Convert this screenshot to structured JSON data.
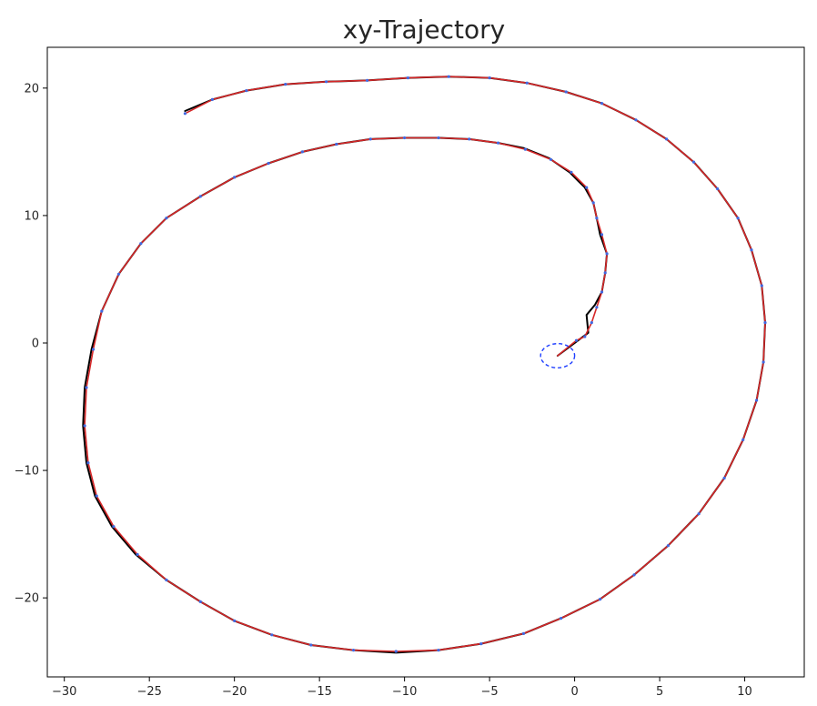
{
  "chart_data": {
    "type": "line",
    "title": "xy-Trajectory",
    "xlabel": "",
    "ylabel": "",
    "xlim": [
      -31,
      13.5
    ],
    "ylim": [
      -26.2,
      23.2
    ],
    "xticks": [
      -30,
      -25,
      -20,
      -15,
      -10,
      -5,
      0,
      5,
      10
    ],
    "yticks": [
      -20,
      -10,
      0,
      10,
      20
    ],
    "xtick_labels": [
      "−30",
      "−25",
      "−20",
      "−15",
      "−10",
      "−5",
      "0",
      "5",
      "10"
    ],
    "ytick_labels": [
      "−20",
      "−10",
      "0",
      "10",
      "20"
    ],
    "grid": false,
    "colors": {
      "ground_truth": "#000000",
      "estimate": "#d62728",
      "points": "#4169e1",
      "start_marker": "#1f3fff"
    },
    "start_marker": {
      "shape": "dashed-ellipse",
      "x": -1.0,
      "y": -1.0,
      "rx_data": 1.0,
      "ry_data": 0.95
    },
    "series": [
      {
        "style": "solid",
        "color": "#000000",
        "x": [
          -1.0,
          0.3,
          0.8,
          0.7,
          1.2,
          1.6,
          1.8,
          1.9,
          1.5,
          1.3,
          1.1,
          0.6,
          -0.3,
          -1.5,
          -3.0,
          -4.5,
          -6.2,
          -8.0,
          -10.0,
          -12.0,
          -14.0,
          -16.0,
          -18.0,
          -20.0,
          -22.0,
          -24.0,
          -25.5,
          -26.8,
          -27.8,
          -28.4,
          -28.8,
          -28.9,
          -28.7,
          -28.2,
          -27.2,
          -25.8,
          -24.0,
          -22.0,
          -20.0,
          -17.8,
          -15.5,
          -13.0,
          -10.5,
          -8.0,
          -5.5,
          -3.0,
          -0.8,
          1.5,
          3.5,
          5.5,
          7.3,
          8.8,
          9.9,
          10.7,
          11.1,
          11.2,
          11.0,
          10.4,
          9.6,
          8.4,
          7.0,
          5.4,
          3.6,
          1.6,
          -0.5,
          -2.8,
          -5.0,
          -7.4,
          -9.8,
          -12.2,
          -14.6,
          -17.0,
          -19.3,
          -21.3,
          -22.9
        ],
        "y": [
          -1.0,
          0.3,
          0.8,
          2.2,
          3.0,
          4.0,
          5.5,
          7.0,
          8.5,
          9.8,
          11.0,
          12.2,
          13.4,
          14.5,
          15.3,
          15.7,
          16.0,
          16.1,
          16.1,
          16.0,
          15.6,
          15.0,
          14.1,
          13.0,
          11.5,
          9.8,
          7.8,
          5.4,
          2.5,
          -0.5,
          -3.5,
          -6.5,
          -9.4,
          -12.0,
          -14.4,
          -16.6,
          -18.6,
          -20.3,
          -21.8,
          -22.9,
          -23.7,
          -24.1,
          -24.3,
          -24.1,
          -23.6,
          -22.8,
          -21.6,
          -20.1,
          -18.2,
          -15.9,
          -13.4,
          -10.6,
          -7.6,
          -4.5,
          -1.5,
          1.6,
          4.5,
          7.3,
          9.8,
          12.1,
          14.2,
          16.0,
          17.5,
          18.8,
          19.7,
          20.4,
          20.8,
          20.9,
          20.8,
          20.6,
          20.5,
          20.3,
          19.8,
          19.1,
          18.2
        ]
      },
      {
        "style": "solid",
        "color": "#d62728",
        "x": [
          -1.0,
          0.1,
          0.6,
          1.0,
          1.3,
          1.6,
          1.8,
          1.9,
          1.6,
          1.3,
          1.1,
          0.7,
          -0.2,
          -1.4,
          -2.9,
          -4.5,
          -6.2,
          -8.0,
          -10.0,
          -12.0,
          -14.0,
          -16.0,
          -18.0,
          -20.0,
          -22.0,
          -24.0,
          -25.5,
          -26.8,
          -27.8,
          -28.3,
          -28.7,
          -28.8,
          -28.6,
          -28.1,
          -27.1,
          -25.7,
          -24.0,
          -22.0,
          -20.0,
          -17.8,
          -15.5,
          -13.0,
          -10.5,
          -8.0,
          -5.5,
          -3.0,
          -0.8,
          1.5,
          3.5,
          5.5,
          7.3,
          8.8,
          9.9,
          10.7,
          11.1,
          11.2,
          11.0,
          10.4,
          9.6,
          8.4,
          7.0,
          5.4,
          3.6,
          1.6,
          -0.5,
          -2.8,
          -5.0,
          -7.4,
          -9.8,
          -12.2,
          -14.6,
          -17.0,
          -19.3,
          -21.3,
          -22.9
        ],
        "y": [
          -1.0,
          0.2,
          0.5,
          1.6,
          2.8,
          4.0,
          5.5,
          7.0,
          8.5,
          9.8,
          11.0,
          12.2,
          13.4,
          14.4,
          15.2,
          15.7,
          16.0,
          16.1,
          16.1,
          16.0,
          15.6,
          15.0,
          14.1,
          13.0,
          11.5,
          9.8,
          7.8,
          5.4,
          2.5,
          -0.5,
          -3.5,
          -6.5,
          -9.4,
          -12.0,
          -14.4,
          -16.6,
          -18.6,
          -20.3,
          -21.8,
          -22.9,
          -23.7,
          -24.1,
          -24.2,
          -24.1,
          -23.6,
          -22.8,
          -21.6,
          -20.1,
          -18.2,
          -15.9,
          -13.4,
          -10.6,
          -7.6,
          -4.5,
          -1.5,
          1.6,
          4.5,
          7.3,
          9.8,
          12.1,
          14.2,
          16.0,
          17.5,
          18.8,
          19.7,
          20.4,
          20.8,
          20.9,
          20.8,
          20.6,
          20.5,
          20.3,
          19.8,
          19.1,
          18.0
        ]
      }
    ]
  }
}
